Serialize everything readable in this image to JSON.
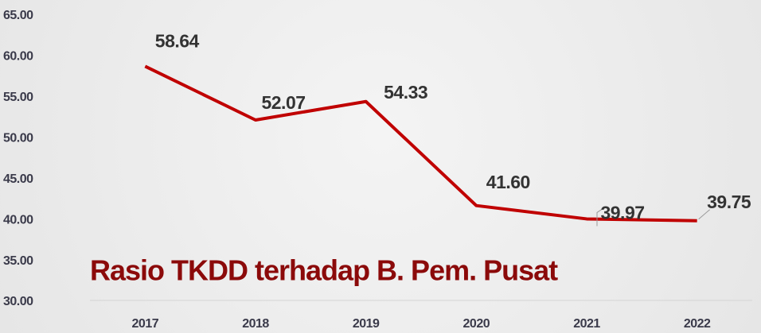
{
  "chart_data": {
    "type": "line",
    "title": "Rasio TKDD terhadap B. Pem. Pusat",
    "categories": [
      "2017",
      "2018",
      "2019",
      "2020",
      "2021",
      "2022"
    ],
    "series": [
      {
        "color": "#c00000",
        "values": [
          58.64,
          52.07,
          54.33,
          41.6,
          39.97,
          39.75
        ],
        "value_labels": [
          "58.64",
          "52.07",
          "54.33",
          "41.60",
          "39.97",
          "39.75"
        ]
      }
    ],
    "ylim": [
      30,
      65
    ],
    "yticks": [
      {
        "value": 30,
        "label": "30.00"
      },
      {
        "value": 35,
        "label": "35.00"
      },
      {
        "value": 40,
        "label": "40.00"
      },
      {
        "value": 45,
        "label": "45.00"
      },
      {
        "value": 50,
        "label": "50.00"
      },
      {
        "value": 55,
        "label": "55.00"
      },
      {
        "value": 60,
        "label": "60.00"
      },
      {
        "value": 65,
        "label": "65.00"
      }
    ]
  }
}
